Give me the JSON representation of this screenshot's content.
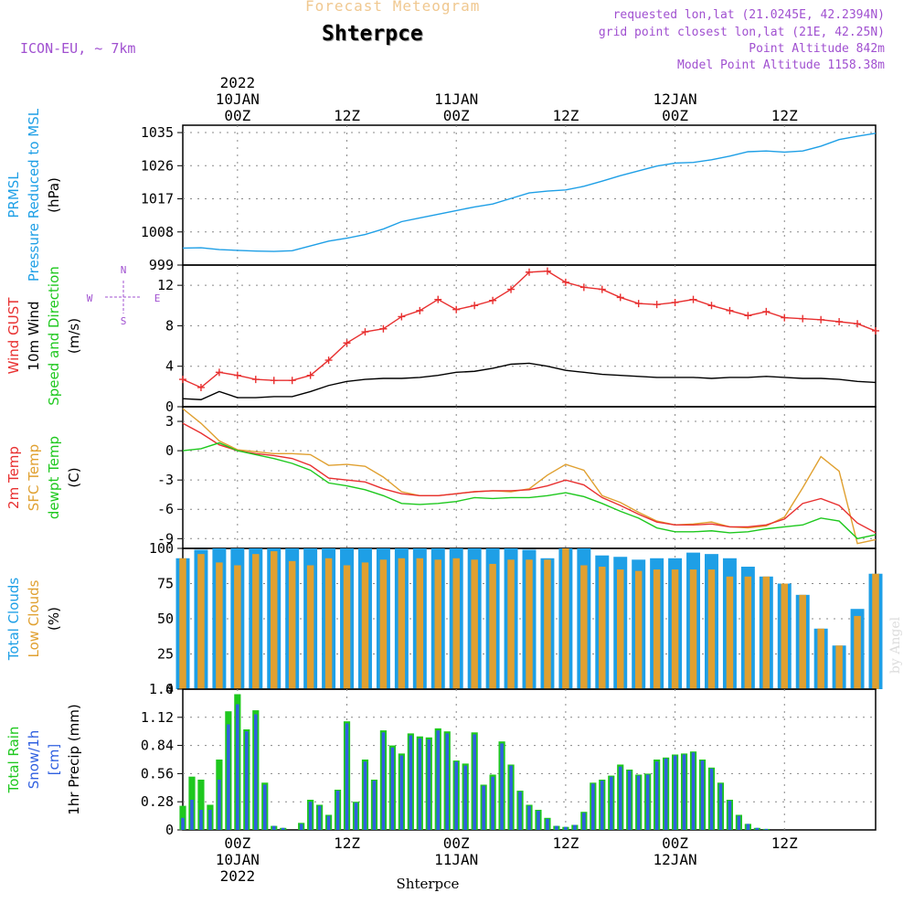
{
  "header": {
    "subtitle": "Forecast Meteogram",
    "station": "Shterpce",
    "model": "ICON-EU, ~ 7km",
    "info": [
      "requested lon,lat (21.0245E, 42.2394N)",
      "grid point closest lon,lat (21E, 42.25N)",
      "Point Altitude 842m",
      "Model Point Altitude 1158.38m"
    ]
  },
  "time_axis": {
    "labels": [
      {
        "t": 6,
        "lines": [
          "2022",
          "10JAN",
          "00Z"
        ]
      },
      {
        "t": 18,
        "lines": [
          "12Z"
        ]
      },
      {
        "t": 30,
        "lines": [
          "11JAN",
          "00Z"
        ]
      },
      {
        "t": 42,
        "lines": [
          "12Z"
        ]
      },
      {
        "t": 54,
        "lines": [
          "12JAN",
          "00Z"
        ]
      },
      {
        "t": 66,
        "lines": [
          "12Z"
        ]
      }
    ],
    "bottom_labels": [
      {
        "t": 6,
        "lines": [
          "00Z",
          "10JAN",
          "2022"
        ]
      },
      {
        "t": 18,
        "lines": [
          "12Z"
        ]
      },
      {
        "t": 30,
        "lines": [
          "00Z",
          "11JAN"
        ]
      },
      {
        "t": 42,
        "lines": [
          "12Z"
        ]
      },
      {
        "t": 54,
        "lines": [
          "00Z",
          "12JAN"
        ]
      },
      {
        "t": 66,
        "lines": [
          "12Z"
        ]
      }
    ],
    "footer": "Shterpce",
    "watermark": "by Angel"
  },
  "chart_data": [
    {
      "type": "line",
      "title": "PRMSL Pressure Reduced to MSL",
      "ylabel": "(hPa)",
      "label_lines": [
        [
          "PRMSL"
        ],
        [
          "Pressure Reduced to MSL"
        ],
        [
          "(hPa)"
        ]
      ],
      "label_colors": [
        "#1e9fe6",
        "#1e9fe6",
        "#000000"
      ],
      "ylim": [
        999,
        1037
      ],
      "yticks": [
        1035,
        1026,
        1017,
        1008,
        999
      ],
      "x": [
        0,
        2,
        4,
        6,
        8,
        10,
        12,
        14,
        16,
        18,
        20,
        22,
        24,
        26,
        28,
        30,
        32,
        34,
        36,
        38,
        40,
        42,
        44,
        46,
        48,
        50,
        52,
        54,
        56,
        58,
        60,
        62,
        64,
        66,
        68,
        70,
        72,
        74,
        76
      ],
      "series": [
        {
          "name": "PRMSL",
          "color": "#1e9fe6",
          "values": [
            1003.6,
            1003.7,
            1003.2,
            1003.0,
            1002.8,
            1002.7,
            1002.9,
            1004.2,
            1005.5,
            1006.3,
            1007.3,
            1008.8,
            1010.8,
            1011.8,
            1012.8,
            1013.8,
            1014.8,
            1015.6,
            1017.1,
            1018.6,
            1019.1,
            1019.4,
            1020.4,
            1021.8,
            1023.3,
            1024.6,
            1025.9,
            1026.7,
            1026.9,
            1027.6,
            1028.6,
            1029.8,
            1030.0,
            1029.7,
            1030.0,
            1031.3,
            1033.1,
            1034.0,
            1034.8
          ]
        }
      ]
    },
    {
      "type": "line",
      "title": "Wind GUST / 10m Wind Speed and Direction",
      "ylabel": "(m/s)",
      "label_lines": [
        [
          "Wind GUST"
        ],
        [
          "10m Wind"
        ],
        [
          "Speed and Direction"
        ],
        [
          "(m/s)"
        ]
      ],
      "label_colors": [
        "#e83030",
        "#000000",
        "#1ec81e",
        "#000000"
      ],
      "compass": {
        "n": "N",
        "s": "S",
        "e": "E",
        "w": "W"
      },
      "ylim": [
        0,
        14
      ],
      "yticks": [
        12,
        8,
        4,
        0
      ],
      "x": [
        0,
        2,
        4,
        6,
        8,
        10,
        12,
        14,
        16,
        18,
        20,
        22,
        24,
        26,
        28,
        30,
        32,
        34,
        36,
        38,
        40,
        42,
        44,
        46,
        48,
        50,
        52,
        54,
        56,
        58,
        60,
        62,
        64,
        66,
        68,
        70,
        72,
        74,
        76
      ],
      "series": [
        {
          "name": "Wind GUST",
          "color": "#e83030",
          "marker": "+",
          "values": [
            2.7,
            1.9,
            3.4,
            3.1,
            2.7,
            2.6,
            2.6,
            3.1,
            4.6,
            6.3,
            7.4,
            7.7,
            8.9,
            9.5,
            10.6,
            9.6,
            10.0,
            10.5,
            11.6,
            13.3,
            13.4,
            12.3,
            11.8,
            11.6,
            10.8,
            10.2,
            10.1,
            10.3,
            10.6,
            10.0,
            9.5,
            9.0,
            9.4,
            8.8,
            8.7,
            8.6,
            8.4,
            8.2,
            7.5
          ]
        },
        {
          "name": "10m Wind",
          "color": "#000000",
          "values": [
            0.8,
            0.7,
            1.5,
            0.9,
            0.9,
            1.0,
            1.0,
            1.5,
            2.1,
            2.5,
            2.7,
            2.8,
            2.8,
            2.9,
            3.1,
            3.4,
            3.5,
            3.8,
            4.2,
            4.3,
            4.0,
            3.6,
            3.4,
            3.2,
            3.1,
            3.0,
            2.9,
            2.9,
            2.9,
            2.8,
            2.9,
            2.9,
            3.0,
            2.9,
            2.8,
            2.8,
            2.7,
            2.5,
            2.4
          ]
        }
      ]
    },
    {
      "type": "line",
      "title": "2m Temp / SFC Temp / dewpt Temp",
      "ylabel": "(C)",
      "label_lines": [
        [
          "2m Temp"
        ],
        [
          "SFC Temp"
        ],
        [
          "dewpt Temp"
        ],
        [
          "(C)"
        ]
      ],
      "label_colors": [
        "#e83030",
        "#e0a030",
        "#1ec81e",
        "#000000"
      ],
      "ylim": [
        -10,
        4.5
      ],
      "yticks": [
        3,
        0,
        -3,
        -6,
        -9
      ],
      "x": [
        0,
        2,
        4,
        6,
        8,
        10,
        12,
        14,
        16,
        18,
        20,
        22,
        24,
        26,
        28,
        30,
        32,
        34,
        36,
        38,
        40,
        42,
        44,
        46,
        48,
        50,
        52,
        54,
        56,
        58,
        60,
        62,
        64,
        66,
        68,
        70,
        72,
        74,
        76
      ],
      "series": [
        {
          "name": "SFC Temp",
          "color": "#e0a030",
          "values": [
            4.3,
            2.8,
            1.0,
            0.1,
            -0.1,
            -0.3,
            -0.3,
            -0.4,
            -1.5,
            -1.4,
            -1.6,
            -2.7,
            -4.2,
            -4.6,
            -4.6,
            -4.4,
            -4.2,
            -4.1,
            -4.2,
            -3.9,
            -2.5,
            -1.4,
            -2.0,
            -4.6,
            -5.3,
            -6.3,
            -7.2,
            -7.6,
            -7.5,
            -7.3,
            -7.8,
            -7.9,
            -7.7,
            -6.8,
            -3.8,
            -0.6,
            -2.1,
            -9.5,
            -9.1
          ]
        },
        {
          "name": "2m Temp",
          "color": "#e83030",
          "values": [
            2.8,
            1.8,
            0.6,
            0.0,
            -0.3,
            -0.5,
            -0.8,
            -1.5,
            -2.8,
            -3.0,
            -3.2,
            -3.9,
            -4.4,
            -4.6,
            -4.6,
            -4.4,
            -4.2,
            -4.1,
            -4.1,
            -4.0,
            -3.6,
            -3.0,
            -3.5,
            -4.8,
            -5.6,
            -6.5,
            -7.3,
            -7.6,
            -7.6,
            -7.5,
            -7.8,
            -7.8,
            -7.6,
            -7.0,
            -5.4,
            -4.9,
            -5.6,
            -7.4,
            -8.4
          ]
        },
        {
          "name": "dewpt Temp",
          "color": "#1ec81e",
          "values": [
            0.0,
            0.2,
            0.8,
            0.0,
            -0.4,
            -0.8,
            -1.3,
            -2.0,
            -3.3,
            -3.6,
            -4.0,
            -4.6,
            -5.4,
            -5.5,
            -5.4,
            -5.2,
            -4.8,
            -4.9,
            -4.8,
            -4.8,
            -4.6,
            -4.3,
            -4.7,
            -5.4,
            -6.2,
            -6.9,
            -7.9,
            -8.3,
            -8.3,
            -8.2,
            -8.4,
            -8.3,
            -8.0,
            -7.8,
            -7.6,
            -6.9,
            -7.2,
            -9.0,
            -8.6
          ]
        }
      ]
    },
    {
      "type": "bar",
      "title": "Total Clouds / Low Clouds",
      "ylabel": "(%)",
      "label_lines": [
        [
          "Total Clouds"
        ],
        [
          "Low Clouds"
        ],
        [
          "(%)"
        ]
      ],
      "label_colors": [
        "#1e9fe6",
        "#e0a030",
        "#000000"
      ],
      "ylim": [
        0,
        100
      ],
      "yticks": [
        100,
        75,
        50,
        25,
        0
      ],
      "x": [
        0,
        2,
        4,
        6,
        8,
        10,
        12,
        14,
        16,
        18,
        20,
        22,
        24,
        26,
        28,
        30,
        32,
        34,
        36,
        38,
        40,
        42,
        44,
        46,
        48,
        50,
        52,
        54,
        56,
        58,
        60,
        62,
        64,
        66,
        68,
        70,
        72,
        74,
        76
      ],
      "series": [
        {
          "name": "Total Clouds",
          "color": "#1e9fe6",
          "values": [
            93,
            99,
            100,
            100,
            100,
            100,
            100,
            100,
            100,
            100,
            100,
            100,
            100,
            100,
            100,
            100,
            100,
            100,
            100,
            99,
            93,
            100,
            100,
            95,
            94,
            92,
            93,
            93,
            97,
            96,
            93,
            87,
            80,
            75,
            67,
            43,
            31,
            57,
            82
          ]
        },
        {
          "name": "Low Clouds",
          "color": "#e0a030",
          "values": [
            93,
            96,
            90,
            88,
            96,
            98,
            91,
            88,
            93,
            88,
            90,
            92,
            93,
            93,
            92,
            93,
            92,
            89,
            92,
            92,
            92,
            100,
            88,
            87,
            85,
            84,
            85,
            85,
            85,
            85,
            80,
            80,
            80,
            75,
            67,
            43,
            31,
            52,
            82
          ]
        }
      ]
    },
    {
      "type": "bar",
      "title": "Total Rain / Snow 1hr Precip",
      "ylabel": "1hr Precip (mm)",
      "label_lines": [
        [
          "Total",
          "Rain"
        ],
        [
          "Snow/1h"
        ],
        [
          "[cm]"
        ],
        [
          "1hr Precip (mm)"
        ]
      ],
      "label_colors": [
        "#1ec81e",
        "#3060e0",
        "#3060e0",
        "#000000"
      ],
      "ylim": [
        0,
        1.4
      ],
      "yticks": [
        1.4,
        1.12,
        0.84,
        0.56,
        0.28,
        0
      ],
      "x": [
        0,
        1,
        2,
        3,
        4,
        5,
        6,
        7,
        8,
        9,
        10,
        11,
        12,
        13,
        14,
        15,
        16,
        17,
        18,
        19,
        20,
        21,
        22,
        23,
        24,
        25,
        26,
        27,
        28,
        29,
        30,
        31,
        32,
        33,
        34,
        35,
        36,
        37,
        38,
        39,
        40,
        41,
        42,
        43,
        44,
        45,
        46,
        47,
        48,
        49,
        50,
        51,
        52,
        53,
        54,
        55,
        56,
        57,
        58,
        59,
        60,
        61,
        62,
        63,
        64,
        65,
        66,
        67,
        68,
        69,
        70,
        71,
        72,
        73,
        74,
        75,
        76
      ],
      "series": [
        {
          "name": "Total Rain",
          "color": "#1ec81e",
          "values": [
            0.24,
            0.53,
            0.5,
            0.25,
            0.7,
            1.18,
            1.35,
            1.0,
            1.19,
            0.47,
            0.04,
            0.02,
            0,
            0.07,
            0.3,
            0.25,
            0.15,
            0.4,
            1.08,
            0.28,
            0.7,
            0.5,
            0.99,
            0.84,
            0.76,
            0.96,
            0.93,
            0.92,
            1.01,
            0.98,
            0.69,
            0.66,
            0.97,
            0.45,
            0.55,
            0.88,
            0.65,
            0.39,
            0.25,
            0.2,
            0.12,
            0.04,
            0.03,
            0.05,
            0.18,
            0.47,
            0.5,
            0.54,
            0.65,
            0.6,
            0.55,
            0.56,
            0.7,
            0.72,
            0.75,
            0.76,
            0.78,
            0.7,
            0.62,
            0.47,
            0.3,
            0.15,
            0.06,
            0.02,
            0.01,
            0,
            0,
            0,
            0,
            0,
            0,
            0,
            0,
            0,
            0,
            0,
            0
          ]
        },
        {
          "name": "Snow/1h",
          "color": "#3060e0",
          "values": [
            0.12,
            0.3,
            0.2,
            0.2,
            0.5,
            1.05,
            1.25,
            0.98,
            1.15,
            0.45,
            0.04,
            0.02,
            0,
            0.06,
            0.28,
            0.24,
            0.14,
            0.39,
            1.06,
            0.27,
            0.68,
            0.49,
            0.97,
            0.82,
            0.74,
            0.94,
            0.91,
            0.9,
            0.99,
            0.96,
            0.68,
            0.64,
            0.95,
            0.44,
            0.53,
            0.86,
            0.64,
            0.38,
            0.24,
            0.19,
            0.11,
            0.04,
            0.03,
            0.05,
            0.17,
            0.46,
            0.49,
            0.53,
            0.63,
            0.59,
            0.54,
            0.55,
            0.68,
            0.71,
            0.74,
            0.75,
            0.77,
            0.69,
            0.61,
            0.46,
            0.29,
            0.14,
            0.06,
            0.02,
            0.01,
            0,
            0,
            0,
            0,
            0,
            0,
            0,
            0,
            0,
            0,
            0,
            0
          ]
        }
      ]
    }
  ]
}
